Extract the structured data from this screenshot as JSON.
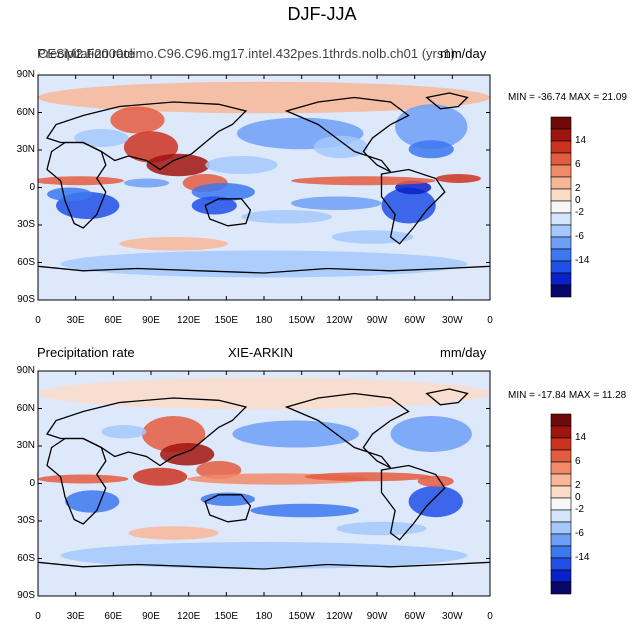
{
  "title": "DJF-JJA",
  "colorbar": {
    "colors": [
      "#08086b",
      "#0a20c8",
      "#2050e8",
      "#3c78f0",
      "#6e9ff6",
      "#a4c8fb",
      "#d4e6fd",
      "#f7f7f7",
      "#fbdcc8",
      "#f8b698",
      "#f08a68",
      "#e45c40",
      "#cc3220",
      "#a0140e",
      "#6e0a08"
    ],
    "labels": [
      "14",
      "6",
      "2",
      "0",
      "-2",
      "-6",
      "-14"
    ]
  },
  "lat_ticks": [
    "90N",
    "60N",
    "30N",
    "0",
    "30S",
    "60S",
    "90S"
  ],
  "lon_ticks": [
    "0",
    "30E",
    "60E",
    "90E",
    "120E",
    "150E",
    "180",
    "150W",
    "120W",
    "90W",
    "60W",
    "30W",
    "0"
  ],
  "panels": [
    {
      "id": "model",
      "left_title": "Precipitation rate",
      "center_title": "CESM2.F2000climo.C96.C96.mg17.intel.432pes.1thrds.nolb.ch01 (yrs1)",
      "units": "mm/day",
      "min_label": "MIN = ",
      "min_value": "-36.74",
      "max_label": "MAX = ",
      "max_value": "21.09"
    },
    {
      "id": "obs",
      "left_title": "Precipitation rate",
      "center_title": "XIE-ARKIN",
      "units": "mm/day",
      "min_label": "MIN = ",
      "min_value": "-17.84",
      "max_label": "MAX = ",
      "max_value": "11.28"
    }
  ]
}
